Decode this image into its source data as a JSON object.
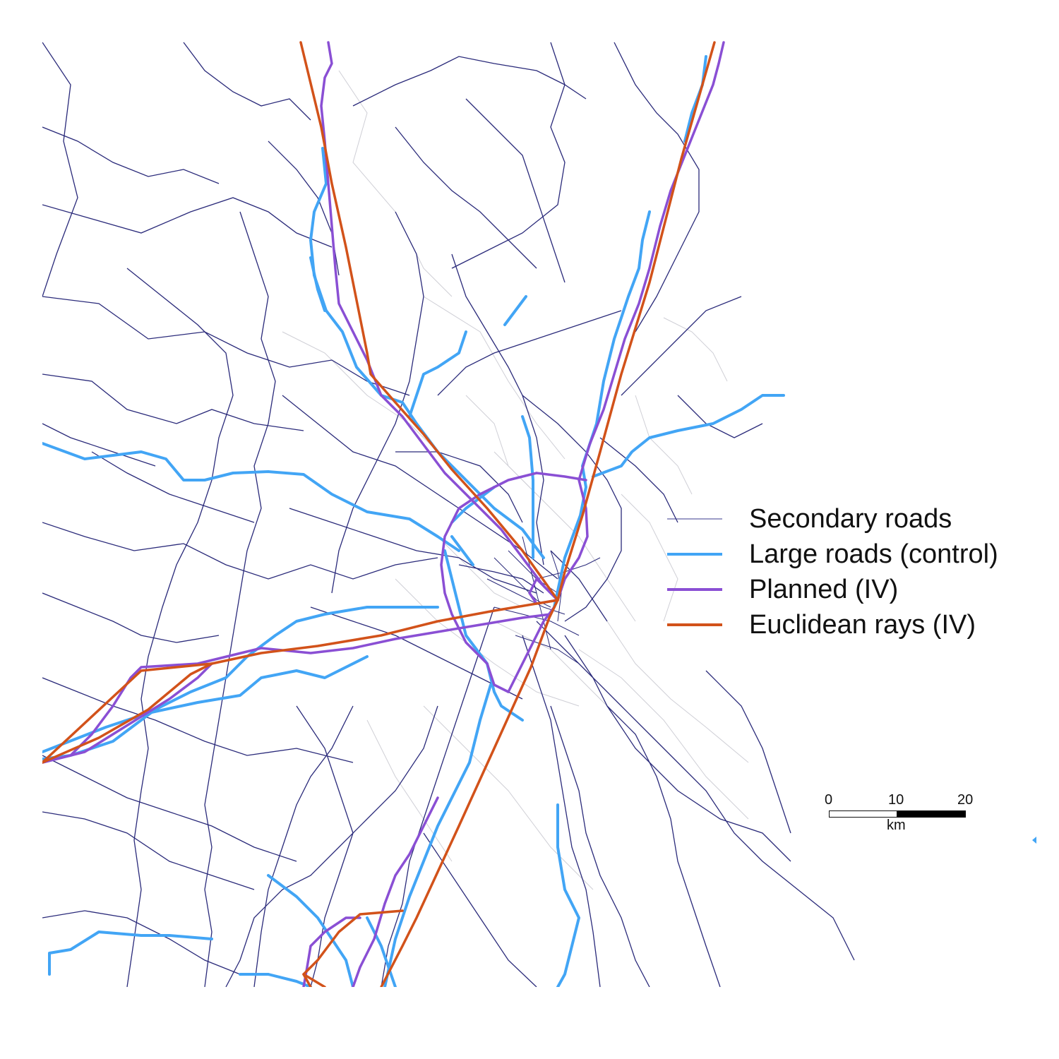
{
  "legend": {
    "items": [
      {
        "label": "Secondary roads",
        "color": "#3a3a8c",
        "style": "thin"
      },
      {
        "label": "Large roads (control)",
        "color": "#42a5f5",
        "style": "thick"
      },
      {
        "label": "Planned (IV)",
        "color": "#8a4fd4",
        "style": "thick"
      },
      {
        "label": "Euclidean rays (IV)",
        "color": "#d2521a",
        "style": "thick"
      }
    ]
  },
  "scale_bar": {
    "ticks": [
      "0",
      "10",
      "20"
    ],
    "unit": "km"
  },
  "colors": {
    "secondary": "#2a2a7a",
    "local": "#c8c8d0",
    "large": "#42a5f5",
    "planned": "#8a4fd4",
    "rays": "#d2521a"
  }
}
